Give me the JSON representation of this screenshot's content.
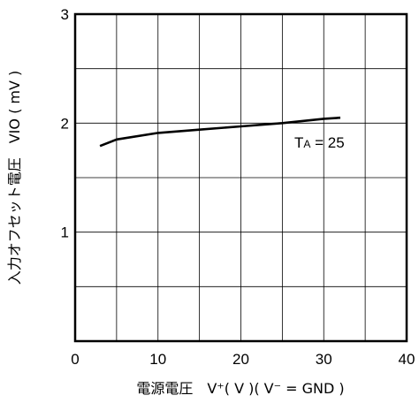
{
  "chart_data": {
    "type": "line",
    "title": "",
    "xlabel": "電源電圧　V⁺( V )( V⁻ = GND )",
    "ylabel": "入力オフセット電圧　VIO ( mV )",
    "xlim": [
      0,
      40
    ],
    "ylim": [
      0,
      3
    ],
    "xticks": [
      "0",
      "10",
      "20",
      "30",
      "40"
    ],
    "yticks": [
      "1",
      "2",
      "3"
    ],
    "grid": true,
    "grid_x_step": 5,
    "grid_y_step": 0.5,
    "series": [
      {
        "annotation_main": "T",
        "annotation_sub": "A",
        "annotation_rest": " = 25",
        "x": [
          3,
          5,
          10,
          15,
          20,
          25,
          30,
          32
        ],
        "y": [
          1.79,
          1.85,
          1.91,
          1.94,
          1.97,
          2.0,
          2.04,
          2.05
        ]
      }
    ]
  }
}
